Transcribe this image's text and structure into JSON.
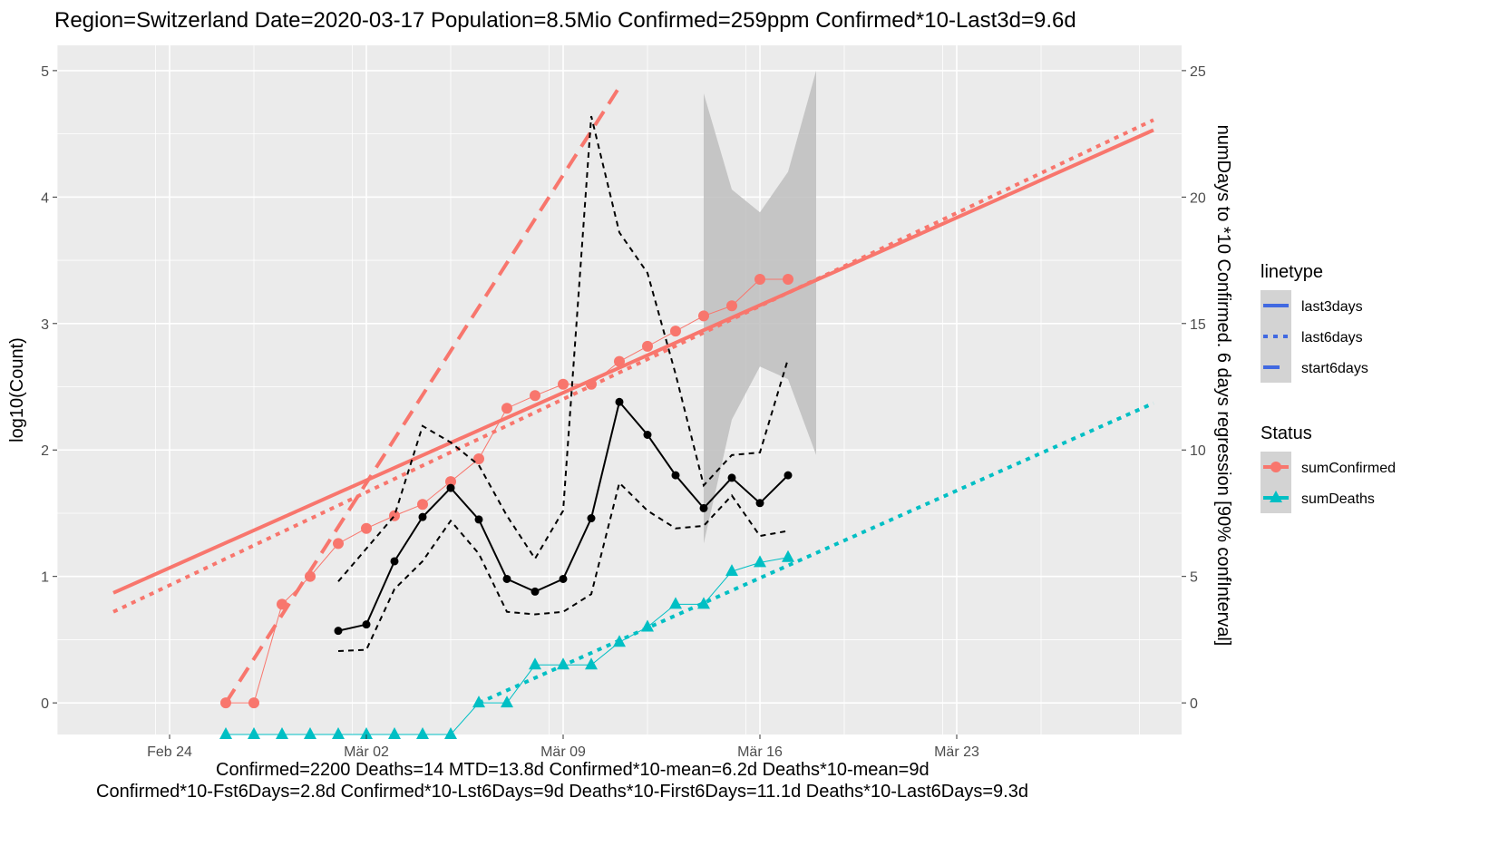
{
  "chart_data": {
    "type": "line",
    "title": "Region=Switzerland Date=2020-03-17  Population=8.5Mio Confirmed=259ppm  Confirmed*10-Last3d=9.6d",
    "footer_lines": [
      "Confirmed=2200 Deaths=14  MTD=13.8d   Confirmed*10-mean=6.2d  Deaths*10-mean=9d",
      "Confirmed*10-Fst6Days=2.8d  Confirmed*10-Lst6Days=9d    Deaths*10-First6Days=11.1d  Deaths*10-Last6Days=9.3d"
    ],
    "ylabel": "log10(Count)",
    "y2label": "numDays to *10 Confirmed. 6 days regression [90% confInterval]",
    "x_ticks": [
      {
        "date": "2020-02-24",
        "label": "Feb 24"
      },
      {
        "date": "2020-03-02",
        "label": "Mär 02"
      },
      {
        "date": "2020-03-09",
        "label": "Mär 09"
      },
      {
        "date": "2020-03-16",
        "label": "Mär 16"
      },
      {
        "date": "2020-03-23",
        "label": "Mär 23"
      }
    ],
    "xlim": [
      "2020-02-20",
      "2020-03-31"
    ],
    "ylim": [
      -0.25,
      5.2
    ],
    "y_ticks": [
      "0",
      "1",
      "2",
      "3",
      "4",
      "5"
    ],
    "y2_ticks": [
      "0",
      "5",
      "10",
      "15",
      "20",
      "25"
    ],
    "y2lim": [
      0,
      25
    ],
    "grid": true,
    "legend_placement": "right",
    "legends": [
      {
        "title": "linetype",
        "entries": [
          {
            "label": "last3days",
            "dash": "solid"
          },
          {
            "label": "last6days",
            "dash": "dotted"
          },
          {
            "label": "start6days",
            "dash": "dashed"
          }
        ],
        "color": "#4169e1"
      },
      {
        "title": "Status",
        "entries": [
          {
            "label": "sumConfirmed",
            "color": "#f8766d",
            "marker": "circle"
          },
          {
            "label": "sumDeaths",
            "color": "#00bfc4",
            "marker": "triangle"
          }
        ]
      }
    ],
    "series": [
      {
        "name": "sumConfirmed",
        "color": "#f8766d",
        "marker": "circle",
        "axis": "left",
        "points": [
          [
            "2020-02-26",
            0
          ],
          [
            "2020-02-27",
            0
          ],
          [
            "2020-02-28",
            0.78
          ],
          [
            "2020-02-29",
            1.0
          ],
          [
            "2020-03-01",
            1.26
          ],
          [
            "2020-03-02",
            1.38
          ],
          [
            "2020-03-03",
            1.48
          ],
          [
            "2020-03-04",
            1.57
          ],
          [
            "2020-03-05",
            1.75
          ],
          [
            "2020-03-06",
            1.93
          ],
          [
            "2020-03-07",
            2.33
          ],
          [
            "2020-03-08",
            2.43
          ],
          [
            "2020-03-09",
            2.52
          ],
          [
            "2020-03-10",
            2.52
          ],
          [
            "2020-03-11",
            2.7
          ],
          [
            "2020-03-12",
            2.82
          ],
          [
            "2020-03-13",
            2.94
          ],
          [
            "2020-03-14",
            3.06
          ],
          [
            "2020-03-15",
            3.14
          ],
          [
            "2020-03-16",
            3.35
          ],
          [
            "2020-03-17",
            3.35
          ]
        ]
      },
      {
        "name": "sumDeaths",
        "color": "#00bfc4",
        "marker": "triangle",
        "axis": "left",
        "points": [
          [
            "2020-02-26",
            -0.25
          ],
          [
            "2020-02-27",
            -0.25
          ],
          [
            "2020-02-28",
            -0.25
          ],
          [
            "2020-02-29",
            -0.25
          ],
          [
            "2020-03-01",
            -0.25
          ],
          [
            "2020-03-02",
            -0.25
          ],
          [
            "2020-03-03",
            -0.25
          ],
          [
            "2020-03-04",
            -0.25
          ],
          [
            "2020-03-05",
            -0.25
          ],
          [
            "2020-03-06",
            0
          ],
          [
            "2020-03-07",
            0
          ],
          [
            "2020-03-08",
            0.3
          ],
          [
            "2020-03-09",
            0.3
          ],
          [
            "2020-03-10",
            0.3
          ],
          [
            "2020-03-11",
            0.48
          ],
          [
            "2020-03-12",
            0.6
          ],
          [
            "2020-03-13",
            0.78
          ],
          [
            "2020-03-14",
            0.78
          ],
          [
            "2020-03-15",
            1.04
          ],
          [
            "2020-03-16",
            1.11
          ],
          [
            "2020-03-17",
            1.15
          ]
        ]
      },
      {
        "name": "numDays regression",
        "color": "#000000",
        "marker": "dot",
        "axis": "right",
        "points": [
          [
            "2020-03-01",
            2.85
          ],
          [
            "2020-03-02",
            3.1
          ],
          [
            "2020-03-03",
            5.6
          ],
          [
            "2020-03-04",
            7.35
          ],
          [
            "2020-03-05",
            8.5
          ],
          [
            "2020-03-06",
            7.25
          ],
          [
            "2020-03-07",
            4.9
          ],
          [
            "2020-03-08",
            4.4
          ],
          [
            "2020-03-09",
            4.9
          ],
          [
            "2020-03-10",
            7.3
          ],
          [
            "2020-03-11",
            11.9
          ],
          [
            "2020-03-12",
            10.6
          ],
          [
            "2020-03-13",
            9.0
          ],
          [
            "2020-03-14",
            7.7
          ],
          [
            "2020-03-15",
            8.9
          ],
          [
            "2020-03-16",
            7.9
          ],
          [
            "2020-03-17",
            9.0
          ]
        ]
      },
      {
        "name": "numDays regression upper",
        "color": "#000000",
        "dash": "dashed",
        "axis": "right",
        "points": [
          [
            "2020-03-01",
            4.8
          ],
          [
            "2020-03-02",
            6.1
          ],
          [
            "2020-03-03",
            7.4
          ],
          [
            "2020-03-04",
            10.95
          ],
          [
            "2020-03-05",
            10.3
          ],
          [
            "2020-03-06",
            9.4
          ],
          [
            "2020-03-07",
            7.4
          ],
          [
            "2020-03-08",
            5.7
          ],
          [
            "2020-03-09",
            7.6
          ],
          [
            "2020-03-10",
            23.2
          ],
          [
            "2020-03-11",
            18.6
          ],
          [
            "2020-03-12",
            17.0
          ],
          [
            "2020-03-13",
            13.0
          ],
          [
            "2020-03-14",
            8.6
          ],
          [
            "2020-03-15",
            9.8
          ],
          [
            "2020-03-16",
            9.9
          ],
          [
            "2020-03-17",
            13.6
          ]
        ]
      },
      {
        "name": "numDays regression lower",
        "color": "#000000",
        "dash": "dashed",
        "axis": "right",
        "points": [
          [
            "2020-03-01",
            2.05
          ],
          [
            "2020-03-02",
            2.1
          ],
          [
            "2020-03-03",
            4.5
          ],
          [
            "2020-03-04",
            5.6
          ],
          [
            "2020-03-05",
            7.2
          ],
          [
            "2020-03-06",
            5.9
          ],
          [
            "2020-03-07",
            3.6
          ],
          [
            "2020-03-08",
            3.5
          ],
          [
            "2020-03-09",
            3.6
          ],
          [
            "2020-03-10",
            4.3
          ],
          [
            "2020-03-11",
            8.7
          ],
          [
            "2020-03-12",
            7.6
          ],
          [
            "2020-03-13",
            6.9
          ],
          [
            "2020-03-14",
            7.0
          ],
          [
            "2020-03-15",
            8.2
          ],
          [
            "2020-03-16",
            6.6
          ],
          [
            "2020-03-17",
            6.8
          ]
        ]
      }
    ],
    "ribbon": {
      "color": "#bebebe",
      "axis": "right",
      "points": [
        [
          "2020-03-14",
          24.1,
          6.3
        ],
        [
          "2020-03-15",
          20.3,
          11.2
        ],
        [
          "2020-03-16",
          19.4,
          13.3
        ],
        [
          "2020-03-17",
          21.0,
          12.8
        ],
        [
          "2020-03-18",
          25.0,
          9.8
        ]
      ]
    },
    "regression_lines": [
      {
        "name": "sumConfirmed last3days",
        "color": "#f8766d",
        "dash": "solid",
        "x": [
          "2020-02-22",
          "2020-03-30"
        ],
        "y": [
          0.87,
          4.53
        ]
      },
      {
        "name": "sumConfirmed last6days",
        "color": "#f8766d",
        "dash": "dotted",
        "x": [
          "2020-02-22",
          "2020-03-30"
        ],
        "y": [
          0.72,
          4.61
        ]
      },
      {
        "name": "sumConfirmed start6days",
        "color": "#f8766d",
        "dash": "dashed",
        "x": [
          "2020-02-26",
          "2020-03-11"
        ],
        "y": [
          0.0,
          4.87
        ]
      },
      {
        "name": "sumDeaths last6days",
        "color": "#00bfc4",
        "dash": "dotted",
        "x": [
          "2020-03-06",
          "2020-03-30"
        ],
        "y": [
          0.0,
          2.37
        ]
      }
    ]
  }
}
